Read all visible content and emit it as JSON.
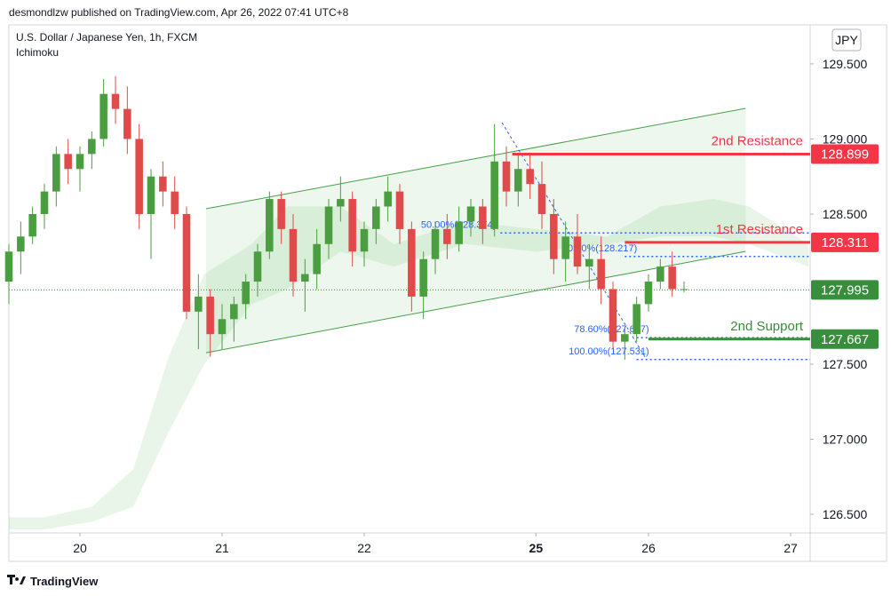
{
  "header": {
    "publisher": "desmondlzw published on TradingView.com, Apr 26, 2022 07:41 UTC+8"
  },
  "footer": {
    "brand": "TradingView"
  },
  "chart_data": {
    "type": "candlestick",
    "title": "U.S. Dollar / Japanese Yen, 1h, FXCM",
    "indicator": "Ichimoku",
    "currency": "JPY",
    "up_color": "#4a9e3f",
    "down_color": "#e04a4a",
    "xlim": [
      0,
      135.3
    ],
    "ylim": [
      126.376,
      129.748
    ],
    "xticks": [
      {
        "value": 12,
        "label": "20"
      },
      {
        "value": 36,
        "label": "21"
      },
      {
        "value": 60,
        "label": "22"
      },
      {
        "value": 89,
        "label": "25"
      },
      {
        "value": 108,
        "label": "26"
      },
      {
        "value": 132,
        "label": "27"
      }
    ],
    "yticks": [
      {
        "value": 126.5,
        "label": "126.500"
      },
      {
        "value": 127,
        "label": "127.000"
      },
      {
        "value": 127.5,
        "label": "127.500"
      },
      {
        "value": 128.5,
        "label": "128.500"
      },
      {
        "value": 129,
        "label": "129.000"
      },
      {
        "value": 129.5,
        "label": "129.500"
      }
    ],
    "x": [
      0,
      2,
      4,
      6,
      8,
      10,
      12,
      14,
      16,
      18,
      20,
      22,
      24,
      26,
      28,
      30,
      32,
      34,
      36,
      38,
      40,
      42,
      44,
      46,
      48,
      50,
      52,
      54,
      56,
      58,
      60,
      62,
      64,
      66,
      68,
      70,
      72,
      74,
      76,
      78,
      80,
      82,
      84,
      86,
      88,
      90,
      92,
      94,
      96,
      98,
      100,
      102,
      104,
      106,
      108,
      110,
      112,
      114
    ],
    "open": [
      128.05,
      128.25,
      128.35,
      128.5,
      128.65,
      128.9,
      128.8,
      128.9,
      129.0,
      129.3,
      129.2,
      129.0,
      128.5,
      128.75,
      128.65,
      128.5,
      127.85,
      127.95,
      127.7,
      127.8,
      127.9,
      128.05,
      128.25,
      128.6,
      128.4,
      128.05,
      128.1,
      128.3,
      128.55,
      128.6,
      128.25,
      128.4,
      128.55,
      128.65,
      128.4,
      127.95,
      128.2,
      128.4,
      128.3,
      128.45,
      128.55,
      128.4,
      128.85,
      128.65,
      128.8,
      128.7,
      128.5,
      128.2,
      128.35,
      128.15,
      128.2,
      128.0,
      127.65,
      127.7,
      127.9,
      128.05,
      128.15,
      128.0
    ],
    "high": [
      128.3,
      128.45,
      128.55,
      128.7,
      128.95,
      129.0,
      128.95,
      129.05,
      129.4,
      129.42,
      129.35,
      129.1,
      128.8,
      128.85,
      128.75,
      128.55,
      128.1,
      128.0,
      127.9,
      127.95,
      128.1,
      128.3,
      128.65,
      128.65,
      128.5,
      128.2,
      128.4,
      128.6,
      128.75,
      128.65,
      128.45,
      128.6,
      128.75,
      128.7,
      128.45,
      128.25,
      128.45,
      128.5,
      128.55,
      128.6,
      128.6,
      129.1,
      128.95,
      128.9,
      128.9,
      128.85,
      128.6,
      128.45,
      128.5,
      128.3,
      128.35,
      128.05,
      127.75,
      127.95,
      128.1,
      128.2,
      128.25,
      128.05
    ],
    "low": [
      127.9,
      128.1,
      128.3,
      128.4,
      128.55,
      128.7,
      128.65,
      128.8,
      128.95,
      129.1,
      128.9,
      128.4,
      128.2,
      128.55,
      128.4,
      127.8,
      127.6,
      127.55,
      127.6,
      127.65,
      127.8,
      127.95,
      128.2,
      128.3,
      127.95,
      127.85,
      128.0,
      128.2,
      128.45,
      128.15,
      128.15,
      128.3,
      128.45,
      128.3,
      127.85,
      127.8,
      128.1,
      128.2,
      128.25,
      128.35,
      128.3,
      128.35,
      128.55,
      128.55,
      128.6,
      128.4,
      128.1,
      128.05,
      128.1,
      128.0,
      127.9,
      127.6,
      127.53,
      127.65,
      127.85,
      128.0,
      127.95,
      127.98
    ],
    "close": [
      128.25,
      128.35,
      128.5,
      128.65,
      128.9,
      128.8,
      128.9,
      129.0,
      129.3,
      129.2,
      129.0,
      128.5,
      128.75,
      128.65,
      128.5,
      127.85,
      127.95,
      127.7,
      127.8,
      127.9,
      128.05,
      128.25,
      128.6,
      128.4,
      128.05,
      128.1,
      128.3,
      128.55,
      128.6,
      128.25,
      128.4,
      128.55,
      128.65,
      128.4,
      127.95,
      128.2,
      128.4,
      128.3,
      128.45,
      128.55,
      128.4,
      128.85,
      128.65,
      128.8,
      128.7,
      128.5,
      128.2,
      128.35,
      128.15,
      128.2,
      128.0,
      127.65,
      127.7,
      127.9,
      128.05,
      128.15,
      128.0,
      128.0
    ],
    "cloud": {
      "x": [
        0,
        6,
        14,
        21,
        27,
        33,
        41,
        47,
        56,
        65,
        77,
        89,
        101,
        110,
        119,
        125,
        135
      ],
      "upper": [
        126.48,
        126.48,
        126.55,
        126.8,
        127.55,
        128.1,
        128.3,
        128.55,
        128.55,
        128.3,
        128.45,
        128.4,
        128.35,
        128.55,
        128.6,
        128.55,
        128.3
      ],
      "lower": [
        126.4,
        126.4,
        126.45,
        126.55,
        127.05,
        127.5,
        127.9,
        128.0,
        128.25,
        128.15,
        128.3,
        128.25,
        128.3,
        128.35,
        128.35,
        128.3,
        128.15
      ]
    },
    "channel": {
      "x": [
        33.3,
        124.4
      ],
      "upper": [
        128.535,
        129.204
      ],
      "lower": [
        127.576,
        128.251
      ]
    },
    "levels": [
      {
        "name": "2nd Resistance",
        "value": 128.899,
        "from": 85,
        "color": "#f23645"
      },
      {
        "name": "1st Resistance",
        "value": 128.311,
        "from": 104,
        "color": "#f23645"
      },
      {
        "name": "2nd Support",
        "value": 127.667,
        "from": 108,
        "color": "#388e3c"
      }
    ],
    "fib": [
      {
        "label": "50.00%(128.374)",
        "value": 128.374,
        "from": 83
      },
      {
        "label": "0.00%(128.217)",
        "value": 128.217,
        "from": 104
      },
      {
        "label": "78.60%(127.677)",
        "value": 127.677,
        "from": 106
      },
      {
        "label": "100.00%(127.531)",
        "value": 127.531,
        "from": 106
      }
    ],
    "fib_color": "#2962ff",
    "last_price": 127.995,
    "last_color": "#388e3c"
  }
}
